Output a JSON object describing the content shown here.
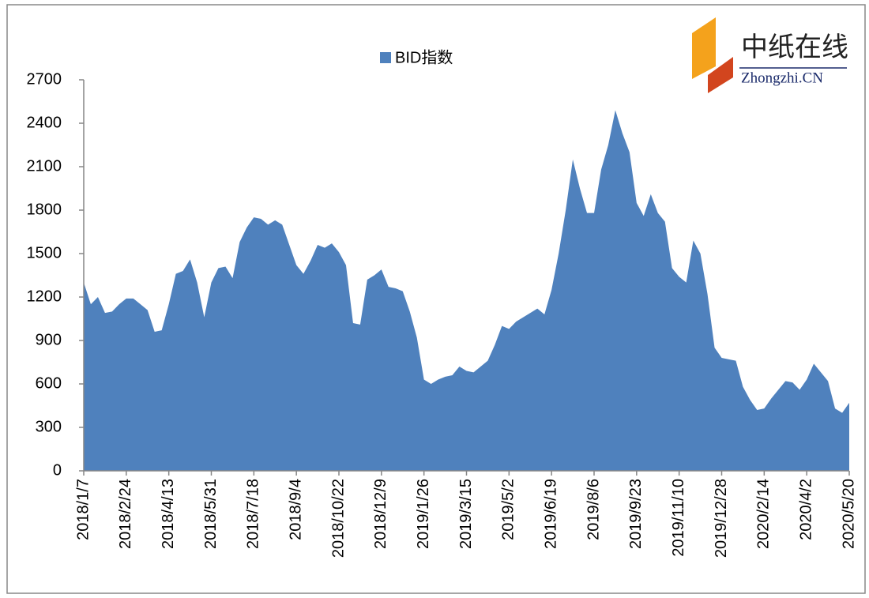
{
  "chart_data": {
    "type": "area",
    "logo": {
      "name": "中纸在线",
      "domain": "Zhongzhi.CN"
    },
    "x": [
      "2018/1/7",
      "2018/1/15",
      "2018/1/23",
      "2018/1/31",
      "2018/2/8",
      "2018/2/16",
      "2018/2/24",
      "2018/3/4",
      "2018/3/12",
      "2018/3/20",
      "2018/3/28",
      "2018/4/5",
      "2018/4/13",
      "2018/4/21",
      "2018/4/29",
      "2018/5/7",
      "2018/5/15",
      "2018/5/23",
      "2018/5/31",
      "2018/6/8",
      "2018/6/16",
      "2018/6/24",
      "2018/7/2",
      "2018/7/10",
      "2018/7/18",
      "2018/7/26",
      "2018/8/3",
      "2018/8/11",
      "2018/8/19",
      "2018/8/27",
      "2018/9/4",
      "2018/9/12",
      "2018/9/20",
      "2018/9/28",
      "2018/10/6",
      "2018/10/14",
      "2018/10/22",
      "2018/10/30",
      "2018/11/7",
      "2018/11/15",
      "2018/11/23",
      "2018/12/1",
      "2018/12/9",
      "2018/12/17",
      "2018/12/25",
      "2019/1/2",
      "2019/1/10",
      "2019/1/18",
      "2019/1/26",
      "2019/2/3",
      "2019/2/11",
      "2019/2/19",
      "2019/2/27",
      "2019/3/7",
      "2019/3/15",
      "2019/3/23",
      "2019/3/31",
      "2019/4/8",
      "2019/4/16",
      "2019/4/24",
      "2019/5/2",
      "2019/5/10",
      "2019/5/18",
      "2019/5/26",
      "2019/6/3",
      "2019/6/11",
      "2019/6/19",
      "2019/6/27",
      "2019/7/5",
      "2019/7/13",
      "2019/7/21",
      "2019/7/29",
      "2019/8/6",
      "2019/8/14",
      "2019/8/22",
      "2019/8/30",
      "2019/9/7",
      "2019/9/15",
      "2019/9/23",
      "2019/10/1",
      "2019/10/9",
      "2019/10/17",
      "2019/10/25",
      "2019/11/2",
      "2019/11/10",
      "2019/11/18",
      "2019/11/26",
      "2019/12/4",
      "2019/12/12",
      "2019/12/20",
      "2019/12/28",
      "2020/1/5",
      "2020/1/13",
      "2020/1/21",
      "2020/1/29",
      "2020/2/6",
      "2020/2/14",
      "2020/2/22",
      "2020/3/1",
      "2020/3/9",
      "2020/3/17",
      "2020/3/25",
      "2020/4/2",
      "2020/4/10",
      "2020/4/18",
      "2020/4/26",
      "2020/5/4",
      "2020/5/12",
      "2020/5/20"
    ],
    "series": [
      {
        "name": "BID指数",
        "color": "#4f81bd",
        "values": [
          1300,
          1150,
          1200,
          1090,
          1100,
          1150,
          1190,
          1190,
          1150,
          1110,
          960,
          970,
          1150,
          1360,
          1380,
          1460,
          1300,
          1060,
          1300,
          1400,
          1410,
          1330,
          1580,
          1680,
          1750,
          1740,
          1700,
          1730,
          1700,
          1560,
          1420,
          1360,
          1450,
          1560,
          1540,
          1570,
          1510,
          1420,
          1020,
          1010,
          1320,
          1350,
          1390,
          1270,
          1260,
          1240,
          1100,
          920,
          630,
          600,
          630,
          650,
          660,
          720,
          690,
          680,
          720,
          760,
          870,
          1000,
          980,
          1030,
          1060,
          1090,
          1120,
          1080,
          1250,
          1500,
          1800,
          2150,
          1950,
          1780,
          1780,
          2080,
          2250,
          2490,
          2330,
          2200,
          1850,
          1760,
          1910,
          1780,
          1720,
          1400,
          1340,
          1300,
          1590,
          1500,
          1220,
          850,
          780,
          770,
          760,
          580,
          490,
          420,
          430,
          500,
          560,
          620,
          610,
          560,
          630,
          740,
          680,
          620,
          430,
          400,
          470
        ]
      }
    ],
    "xlim": [
      "2018/1/7",
      "2020/5/20"
    ],
    "xticks": [
      "2018/1/7",
      "2018/2/24",
      "2018/4/13",
      "2018/5/31",
      "2018/7/18",
      "2018/9/4",
      "2018/10/22",
      "2018/12/9",
      "2019/1/26",
      "2019/3/15",
      "2019/5/2",
      "2019/6/19",
      "2019/8/6",
      "2019/9/23",
      "2019/11/10",
      "2019/12/28",
      "2020/2/14",
      "2020/4/2",
      "2020/5/20"
    ],
    "ylim": [
      0,
      2700
    ],
    "yticks": [
      0,
      300,
      600,
      900,
      1200,
      1500,
      1800,
      2100,
      2400,
      2700
    ],
    "legend": "top"
  }
}
